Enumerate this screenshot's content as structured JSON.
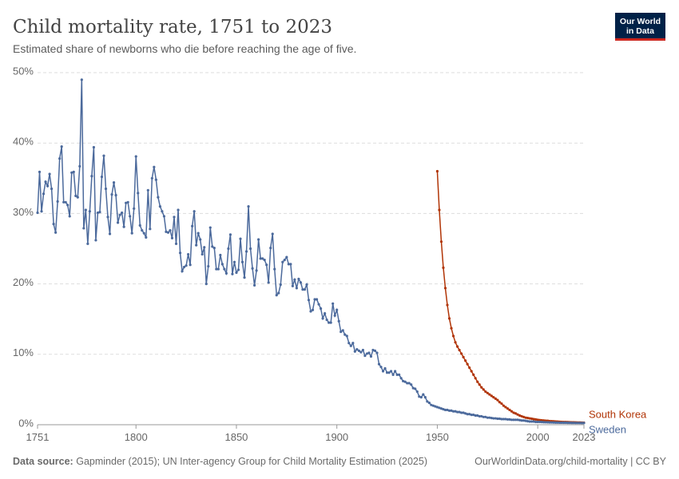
{
  "chart_data": {
    "type": "line",
    "title": "Child mortality rate, 1751 to 2023",
    "subtitle": "Estimated share of newborns who die before reaching the age of five.",
    "source_label": "Data source:",
    "source": "Gapminder (2015); UN Inter-agency Group for Child Mortality Estimation (2025)",
    "url": "OurWorldinData.org/child-mortality | CC BY",
    "logo": [
      "Our World",
      "in Data"
    ],
    "xlim": [
      1751,
      2023
    ],
    "xticks": [
      1751,
      1800,
      1850,
      1900,
      1950,
      2000,
      2023
    ],
    "ylim": [
      0,
      50
    ],
    "yticks": [
      {
        "value": 0,
        "label": "0%"
      },
      {
        "value": 10,
        "label": "10%"
      },
      {
        "value": 20,
        "label": "20%"
      },
      {
        "value": 30,
        "label": "30%"
      },
      {
        "value": 40,
        "label": "40%"
      },
      {
        "value": 50,
        "label": "50%"
      }
    ],
    "grid": true,
    "series": [
      {
        "name": "South Korea",
        "color": "#b13507",
        "x": [
          1950,
          1951,
          1952,
          1953,
          1954,
          1955,
          1956,
          1957,
          1958,
          1959,
          1960,
          1961,
          1962,
          1963,
          1964,
          1965,
          1966,
          1967,
          1968,
          1969,
          1970,
          1971,
          1972,
          1973,
          1974,
          1975,
          1976,
          1977,
          1978,
          1979,
          1980,
          1981,
          1982,
          1983,
          1984,
          1985,
          1986,
          1987,
          1988,
          1989,
          1990,
          1991,
          1992,
          1993,
          1994,
          1995,
          1996,
          1997,
          1998,
          1999,
          2000,
          2001,
          2002,
          2003,
          2004,
          2005,
          2006,
          2007,
          2008,
          2009,
          2010,
          2011,
          2012,
          2013,
          2014,
          2015,
          2016,
          2017,
          2018,
          2019,
          2020,
          2021,
          2022,
          2023
        ],
        "values": [
          36.0,
          30.5,
          26.0,
          22.3,
          19.4,
          17.0,
          15.1,
          13.7,
          12.6,
          11.7,
          11.1,
          10.6,
          10.1,
          9.6,
          9.1,
          8.6,
          8.1,
          7.6,
          7.1,
          6.6,
          6.1,
          5.7,
          5.3,
          5.0,
          4.7,
          4.5,
          4.3,
          4.1,
          3.9,
          3.7,
          3.5,
          3.2,
          3.0,
          2.7,
          2.5,
          2.3,
          2.1,
          1.9,
          1.7,
          1.6,
          1.45,
          1.3,
          1.2,
          1.1,
          1.0,
          0.95,
          0.9,
          0.85,
          0.8,
          0.75,
          0.7,
          0.65,
          0.62,
          0.6,
          0.57,
          0.55,
          0.52,
          0.5,
          0.48,
          0.46,
          0.44,
          0.42,
          0.4,
          0.39,
          0.38,
          0.37,
          0.36,
          0.35,
          0.34,
          0.33,
          0.32,
          0.31,
          0.3,
          0.29
        ]
      },
      {
        "name": "Sweden",
        "color": "#4c6a9c",
        "x": [
          1751,
          1752,
          1753,
          1754,
          1755,
          1756,
          1757,
          1758,
          1759,
          1760,
          1761,
          1762,
          1763,
          1764,
          1765,
          1766,
          1767,
          1768,
          1769,
          1770,
          1771,
          1772,
          1773,
          1774,
          1775,
          1776,
          1777,
          1778,
          1779,
          1780,
          1781,
          1782,
          1783,
          1784,
          1785,
          1786,
          1787,
          1788,
          1789,
          1790,
          1791,
          1792,
          1793,
          1794,
          1795,
          1796,
          1797,
          1798,
          1799,
          1800,
          1801,
          1802,
          1803,
          1804,
          1805,
          1806,
          1807,
          1808,
          1809,
          1810,
          1811,
          1812,
          1813,
          1814,
          1815,
          1816,
          1817,
          1818,
          1819,
          1820,
          1821,
          1822,
          1823,
          1824,
          1825,
          1826,
          1827,
          1828,
          1829,
          1830,
          1831,
          1832,
          1833,
          1834,
          1835,
          1836,
          1837,
          1838,
          1839,
          1840,
          1841,
          1842,
          1843,
          1844,
          1845,
          1846,
          1847,
          1848,
          1849,
          1850,
          1851,
          1852,
          1853,
          1854,
          1855,
          1856,
          1857,
          1858,
          1859,
          1860,
          1861,
          1862,
          1863,
          1864,
          1865,
          1866,
          1867,
          1868,
          1869,
          1870,
          1871,
          1872,
          1873,
          1874,
          1875,
          1876,
          1877,
          1878,
          1879,
          1880,
          1881,
          1882,
          1883,
          1884,
          1885,
          1886,
          1887,
          1888,
          1889,
          1890,
          1891,
          1892,
          1893,
          1894,
          1895,
          1896,
          1897,
          1898,
          1899,
          1900,
          1901,
          1902,
          1903,
          1904,
          1905,
          1906,
          1907,
          1908,
          1909,
          1910,
          1911,
          1912,
          1913,
          1914,
          1915,
          1916,
          1917,
          1918,
          1919,
          1920,
          1921,
          1922,
          1923,
          1924,
          1925,
          1926,
          1927,
          1928,
          1929,
          1930,
          1931,
          1932,
          1933,
          1934,
          1935,
          1936,
          1937,
          1938,
          1939,
          1940,
          1941,
          1942,
          1943,
          1944,
          1945,
          1946,
          1947,
          1948,
          1949,
          1950,
          1951,
          1952,
          1953,
          1954,
          1955,
          1956,
          1957,
          1958,
          1959,
          1960,
          1961,
          1962,
          1963,
          1964,
          1965,
          1966,
          1967,
          1968,
          1969,
          1970,
          1971,
          1972,
          1973,
          1974,
          1975,
          1976,
          1977,
          1978,
          1979,
          1980,
          1981,
          1982,
          1983,
          1984,
          1985,
          1986,
          1987,
          1988,
          1989,
          1990,
          1991,
          1992,
          1993,
          1994,
          1995,
          1996,
          1997,
          1998,
          1999,
          2000,
          2001,
          2002,
          2003,
          2004,
          2005,
          2006,
          2007,
          2008,
          2009,
          2010,
          2011,
          2012,
          2013,
          2014,
          2015,
          2016,
          2017,
          2018,
          2019,
          2020,
          2021,
          2022,
          2023
        ],
        "values": [
          30.1,
          35.9,
          30.3,
          32.8,
          34.5,
          33.9,
          35.6,
          33.5,
          28.5,
          27.3,
          31.7,
          37.8,
          39.5,
          31.6,
          31.6,
          31.2,
          29.6,
          35.8,
          35.9,
          32.5,
          32.3,
          36.7,
          49.0,
          27.9,
          30.5,
          25.7,
          30.3,
          35.3,
          39.4,
          26.2,
          30.1,
          30.2,
          35.2,
          38.2,
          33.5,
          29.5,
          27.1,
          32.7,
          34.4,
          32.6,
          28.7,
          29.8,
          30.1,
          28.1,
          31.5,
          31.6,
          29.6,
          27.2,
          30.7,
          38.1,
          32.9,
          28.3,
          27.6,
          27.2,
          26.6,
          33.3,
          27.8,
          35.0,
          36.6,
          34.8,
          32.3,
          31.0,
          30.3,
          29.6,
          27.4,
          27.3,
          27.6,
          26.5,
          29.5,
          25.7,
          30.5,
          24.4,
          21.8,
          22.4,
          22.6,
          24.2,
          22.7,
          28.2,
          30.3,
          25.5,
          27.2,
          26.3,
          24.2,
          25.2,
          20.0,
          22.5,
          28.0,
          25.3,
          25.1,
          22.1,
          22.1,
          24.1,
          22.8,
          22.1,
          21.5,
          25.0,
          27.0,
          21.4,
          23.1,
          21.6,
          22.0,
          26.4,
          23.1,
          20.9,
          24.6,
          31.0,
          25.0,
          22.2,
          19.8,
          21.9,
          26.3,
          23.6,
          23.6,
          23.4,
          22.7,
          20.2,
          25.1,
          27.1,
          22.1,
          18.4,
          18.7,
          19.9,
          23.1,
          23.4,
          23.8,
          22.8,
          22.8,
          19.7,
          20.6,
          19.4,
          20.7,
          20.2,
          19.2,
          19.2,
          19.9,
          17.7,
          16.1,
          16.3,
          17.8,
          17.8,
          17.1,
          16.5,
          15.1,
          15.8,
          14.9,
          14.5,
          14.5,
          17.2,
          15.5,
          16.3,
          14.7,
          13.2,
          13.4,
          12.8,
          12.6,
          11.6,
          11.2,
          11.6,
          10.4,
          10.7,
          10.5,
          10.3,
          10.6,
          9.8,
          10.1,
          10.2,
          9.7,
          10.6,
          10.5,
          10.2,
          8.6,
          8.2,
          7.6,
          8.0,
          7.4,
          7.4,
          7.6,
          7.1,
          7.6,
          7.1,
          7.1,
          6.6,
          6.2,
          6.1,
          5.9,
          5.9,
          5.7,
          5.2,
          5.1,
          4.7,
          4.0,
          3.9,
          4.3,
          3.9,
          3.3,
          3.1,
          2.8,
          2.7,
          2.6,
          2.5,
          2.4,
          2.3,
          2.2,
          2.1,
          2.1,
          2.0,
          2.0,
          1.9,
          1.9,
          1.8,
          1.8,
          1.7,
          1.7,
          1.6,
          1.5,
          1.5,
          1.4,
          1.4,
          1.3,
          1.3,
          1.2,
          1.2,
          1.1,
          1.1,
          1.0,
          1.0,
          0.95,
          0.9,
          0.9,
          0.85,
          0.85,
          0.8,
          0.8,
          0.8,
          0.75,
          0.75,
          0.7,
          0.7,
          0.7,
          0.7,
          0.65,
          0.6,
          0.6,
          0.55,
          0.5,
          0.45,
          0.45,
          0.45,
          0.4,
          0.4,
          0.4,
          0.38,
          0.36,
          0.35,
          0.34,
          0.33,
          0.32,
          0.31,
          0.3,
          0.3,
          0.29,
          0.29,
          0.28,
          0.28,
          0.27,
          0.27,
          0.26,
          0.26,
          0.25,
          0.25,
          0.25,
          0.24,
          0.24
        ]
      }
    ]
  }
}
